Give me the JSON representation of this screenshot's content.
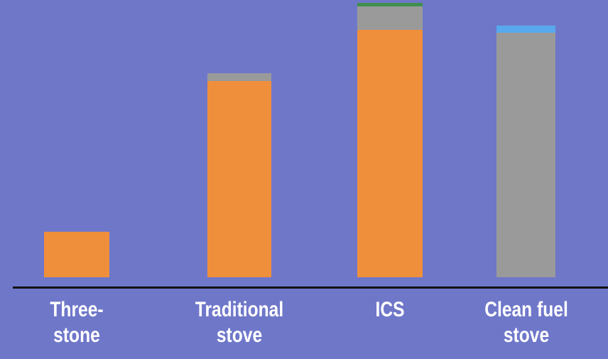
{
  "chart_data": {
    "type": "stacked-bar",
    "categories": [
      "Three-\nstone",
      "Traditional\nstove",
      "ICS",
      "Clean fuel\nstove"
    ],
    "series": [
      {
        "color": "#ef8f3c",
        "values": [
          16.4,
          70.8,
          89.2,
          null
        ]
      },
      {
        "color": "#9a9a9a",
        "values": [
          null,
          2.8,
          8.5,
          88.2
        ]
      },
      {
        "color": "#3f8f4f",
        "values": [
          null,
          null,
          1.3,
          null
        ]
      },
      {
        "color": "#58a8ee",
        "values": [
          null,
          null,
          null,
          2.6
        ]
      }
    ],
    "ylim": [
      0,
      100
    ]
  }
}
